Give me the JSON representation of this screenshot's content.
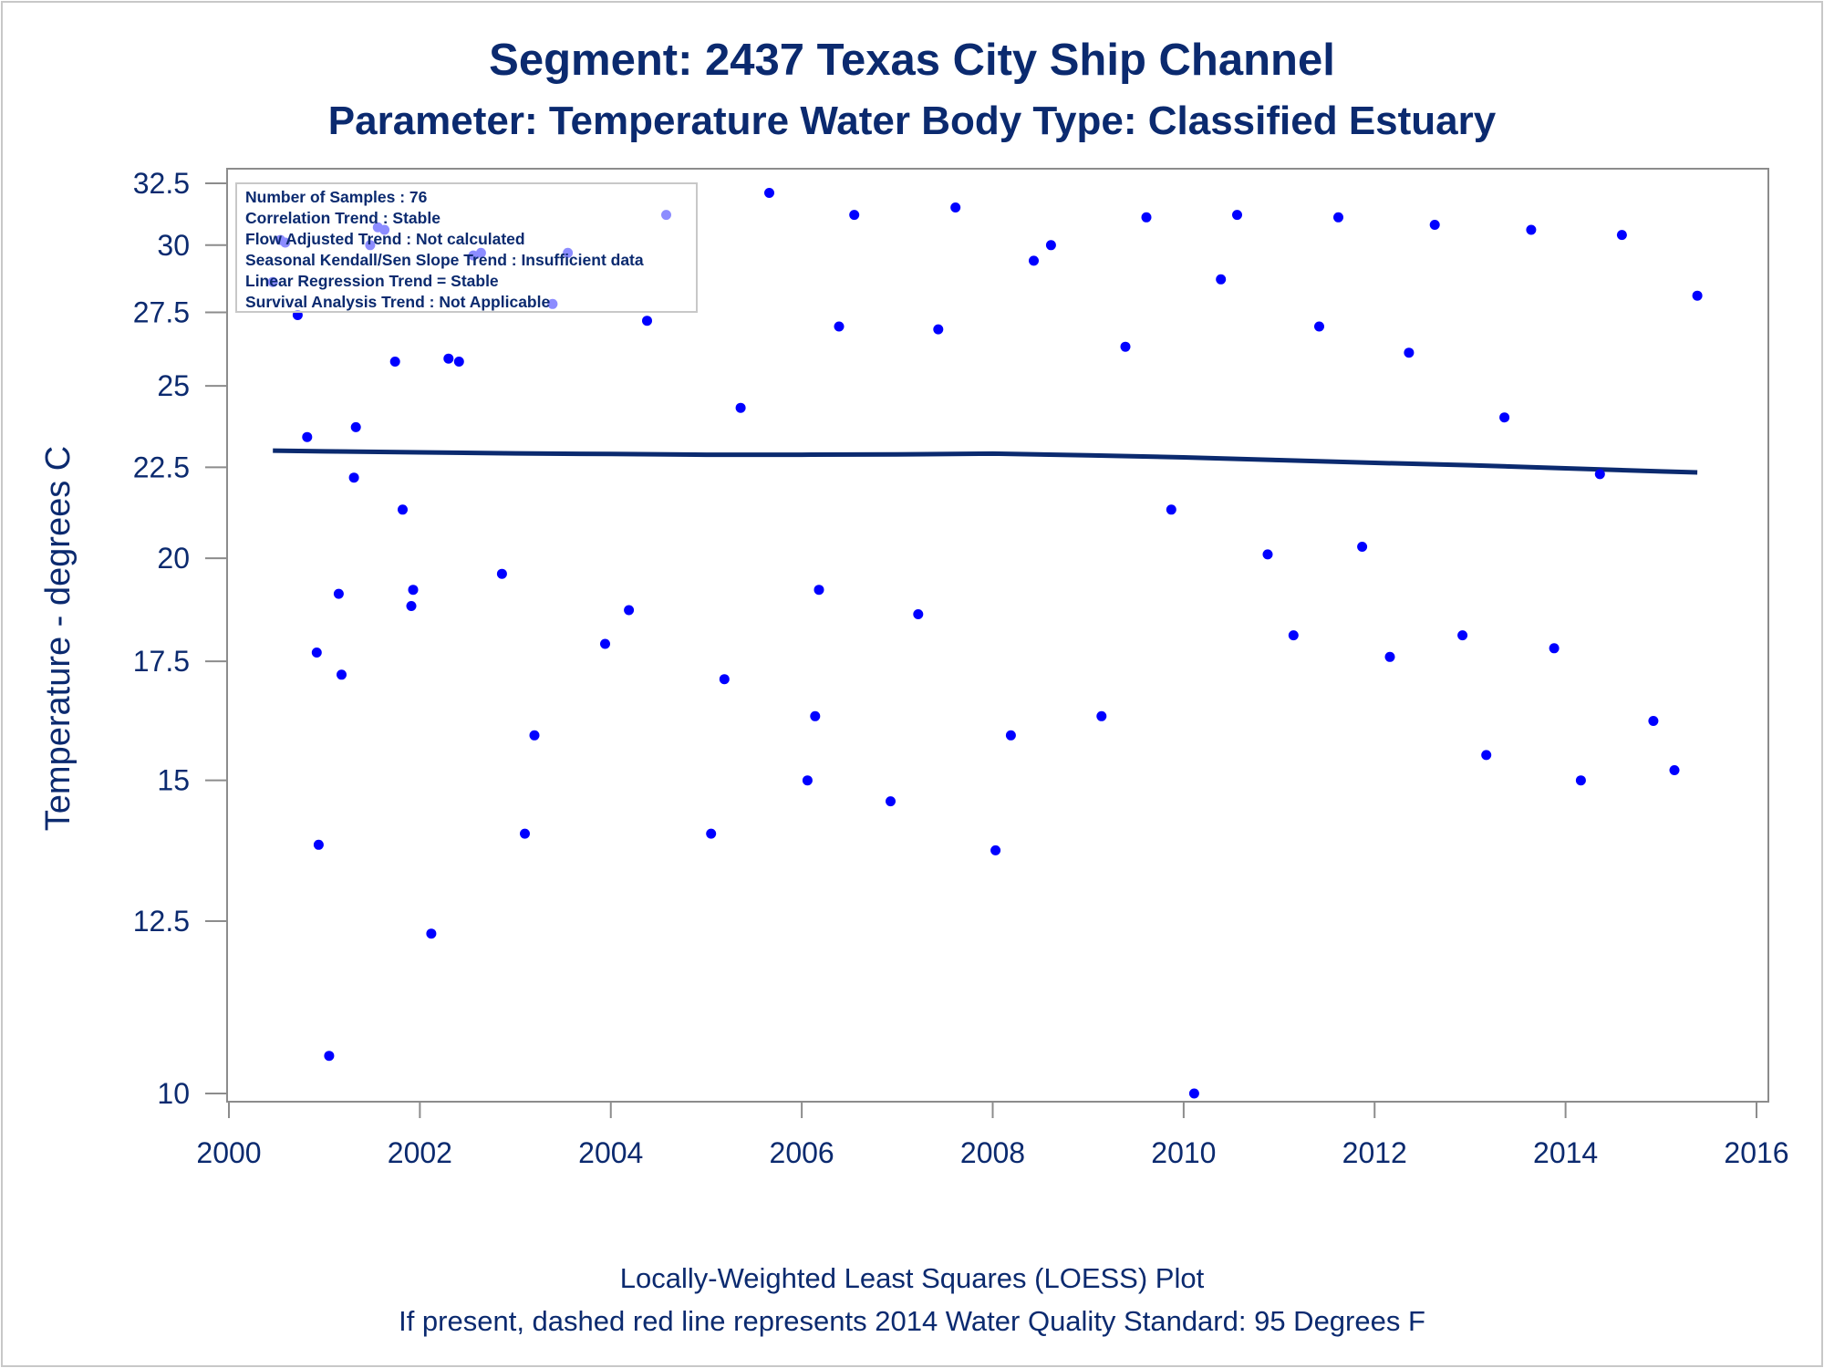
{
  "header": {
    "title": "Segment: 2437  Texas City Ship Channel",
    "subtitle": "Parameter: Temperature   Water Body Type: Classified Estuary"
  },
  "inset": {
    "lines": [
      "Number of Samples : 76",
      "Correlation Trend : Stable",
      "Flow Adjusted Trend : Not calculated",
      "Seasonal Kendall/Sen Slope Trend : Insufficient data",
      "Linear Regression Trend = Stable",
      "Survival Analysis Trend : Not Applicable"
    ]
  },
  "footer": {
    "line1": "Locally-Weighted Least Squares (LOESS) Plot",
    "line2": "If present, dashed red line represents 2014 Water Quality Standard: 95   Degrees F"
  },
  "colors": {
    "text": "#0b2a6f",
    "points": "#0000ff",
    "loess": "#0b2a6f",
    "frame": "#8c8c8c"
  },
  "chart_data": {
    "type": "scatter",
    "xlabel": "",
    "ylabel": "Temperature - degrees C",
    "xlim": [
      2000,
      2016
    ],
    "ylim": [
      10,
      32.5
    ],
    "y_scale": "log",
    "x_ticks": [
      2000,
      2002,
      2004,
      2006,
      2008,
      2010,
      2012,
      2014,
      2016
    ],
    "y_ticks": [
      10,
      12.5,
      15,
      17.5,
      20,
      22.5,
      25,
      27.5,
      30,
      32.5
    ],
    "y_tick_labels": [
      "10",
      "12.5",
      "15",
      "17.5",
      "20",
      "22.5",
      "25",
      "27.5",
      "30",
      "32.5"
    ],
    "grid": false,
    "series": [
      {
        "type": "scatter",
        "points": [
          [
            2000.46,
            28.6
          ],
          [
            2000.54,
            30.2
          ],
          [
            2000.59,
            30.1
          ],
          [
            2000.72,
            27.4
          ],
          [
            2000.82,
            23.4
          ],
          [
            2000.92,
            17.7
          ],
          [
            2000.94,
            13.8
          ],
          [
            2001.05,
            10.5
          ],
          [
            2001.15,
            19.1
          ],
          [
            2001.18,
            17.2
          ],
          [
            2001.31,
            22.2
          ],
          [
            2001.33,
            23.7
          ],
          [
            2001.48,
            30.0
          ],
          [
            2001.56,
            30.7
          ],
          [
            2001.63,
            30.6
          ],
          [
            2001.74,
            25.8
          ],
          [
            2001.82,
            21.3
          ],
          [
            2001.91,
            18.8
          ],
          [
            2001.93,
            19.2
          ],
          [
            2002.12,
            12.3
          ],
          [
            2002.3,
            25.9
          ],
          [
            2002.41,
            25.8
          ],
          [
            2002.56,
            29.6
          ],
          [
            2002.64,
            29.7
          ],
          [
            2002.86,
            19.6
          ],
          [
            2003.1,
            14.0
          ],
          [
            2003.2,
            15.9
          ],
          [
            2003.39,
            27.8
          ],
          [
            2003.55,
            29.7
          ],
          [
            2003.94,
            17.9
          ],
          [
            2004.19,
            18.7
          ],
          [
            2004.38,
            27.2
          ],
          [
            2004.58,
            31.2
          ],
          [
            2005.05,
            14.0
          ],
          [
            2005.19,
            17.1
          ],
          [
            2005.36,
            24.3
          ],
          [
            2005.66,
            32.1
          ],
          [
            2006.06,
            15.0
          ],
          [
            2006.14,
            16.3
          ],
          [
            2006.18,
            19.2
          ],
          [
            2006.39,
            27.0
          ],
          [
            2006.55,
            31.2
          ],
          [
            2006.93,
            14.6
          ],
          [
            2007.22,
            18.6
          ],
          [
            2007.43,
            26.9
          ],
          [
            2007.61,
            31.5
          ],
          [
            2008.03,
            13.7
          ],
          [
            2008.19,
            15.9
          ],
          [
            2008.43,
            29.4
          ],
          [
            2008.61,
            30.0
          ],
          [
            2009.14,
            16.3
          ],
          [
            2009.39,
            26.3
          ],
          [
            2009.61,
            31.1
          ],
          [
            2009.87,
            21.3
          ],
          [
            2010.11,
            10.0
          ],
          [
            2010.39,
            28.7
          ],
          [
            2010.56,
            31.2
          ],
          [
            2010.88,
            20.1
          ],
          [
            2011.15,
            18.1
          ],
          [
            2011.42,
            27.0
          ],
          [
            2011.62,
            31.1
          ],
          [
            2011.87,
            20.3
          ],
          [
            2012.16,
            17.6
          ],
          [
            2012.36,
            26.1
          ],
          [
            2012.63,
            30.8
          ],
          [
            2012.92,
            18.1
          ],
          [
            2013.17,
            15.5
          ],
          [
            2013.36,
            24.0
          ],
          [
            2013.64,
            30.6
          ],
          [
            2013.88,
            17.8
          ],
          [
            2014.16,
            15.0
          ],
          [
            2014.36,
            22.3
          ],
          [
            2014.59,
            30.4
          ],
          [
            2014.92,
            16.2
          ],
          [
            2015.14,
            15.2
          ],
          [
            2015.38,
            28.1
          ]
        ]
      },
      {
        "type": "line",
        "x": [
          2000.46,
          2001.0,
          2002.0,
          2003.0,
          2004.0,
          2005.0,
          2006.0,
          2007.0,
          2008.0,
          2009.0,
          2010.0,
          2011.0,
          2012.0,
          2013.0,
          2014.0,
          2015.0,
          2015.38
        ],
        "y": [
          22.99,
          22.97,
          22.94,
          22.91,
          22.89,
          22.87,
          22.87,
          22.88,
          22.9,
          22.85,
          22.79,
          22.71,
          22.63,
          22.56,
          22.47,
          22.38,
          22.35
        ]
      }
    ]
  }
}
